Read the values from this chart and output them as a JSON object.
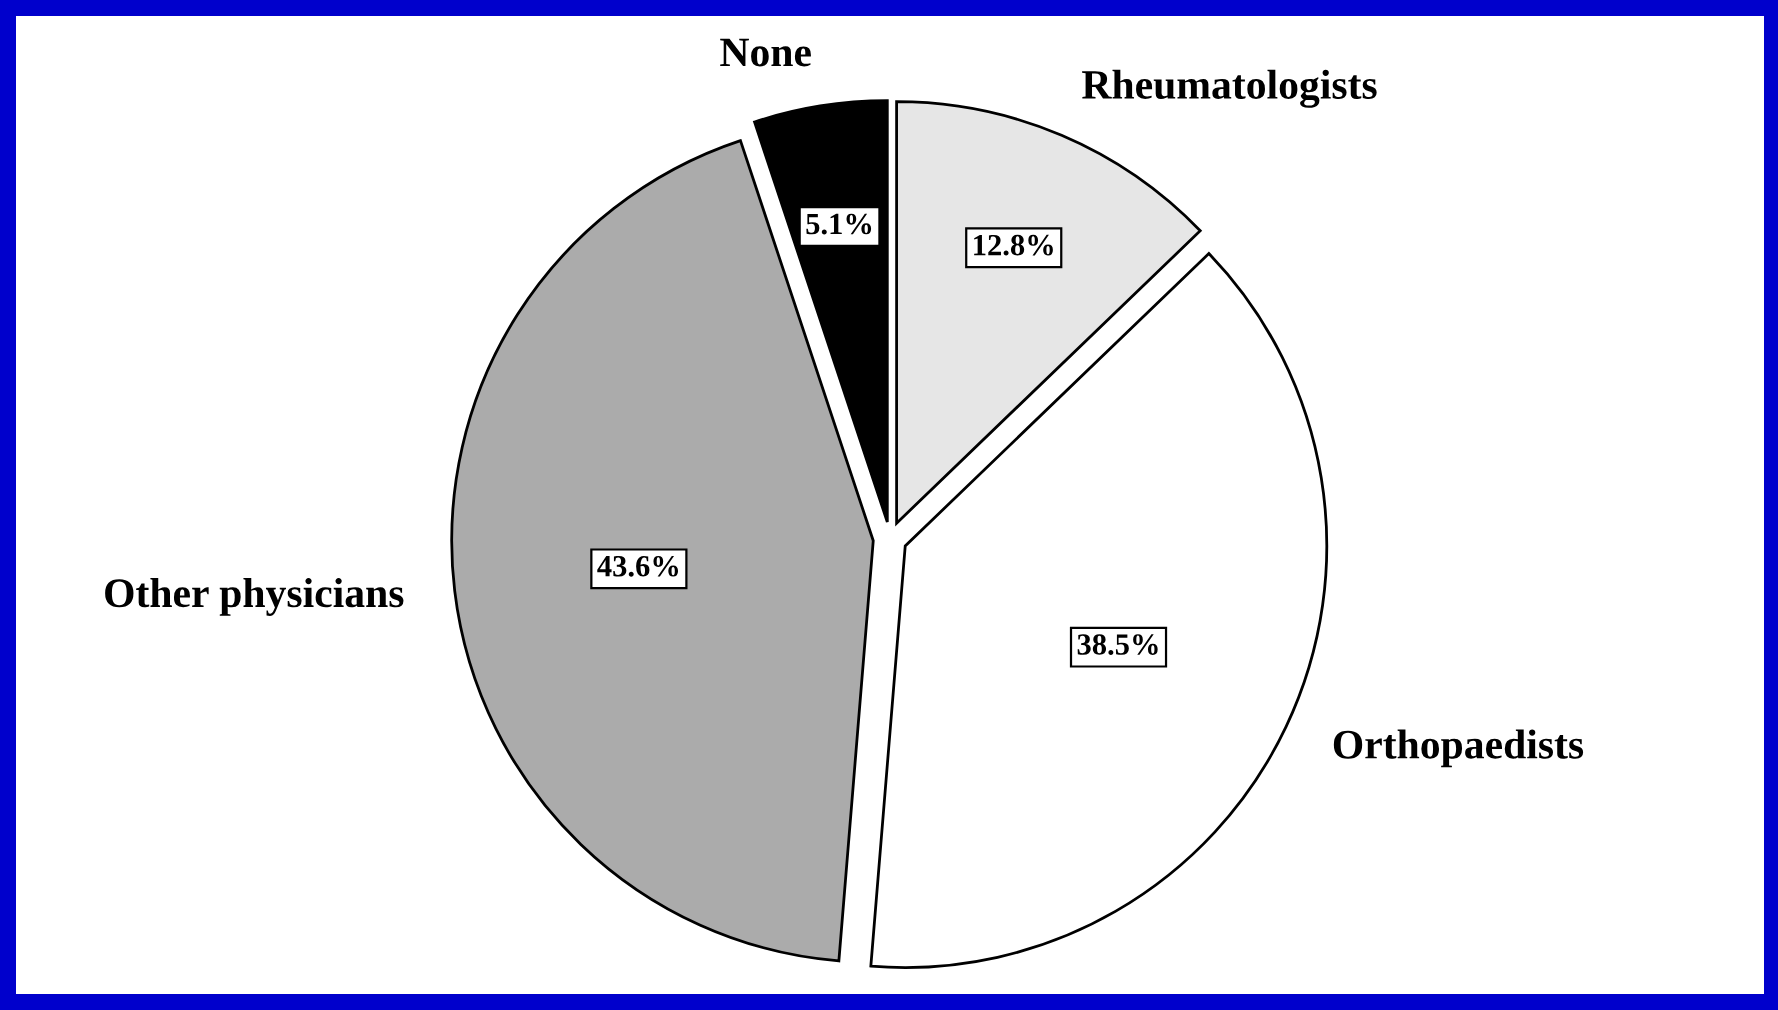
{
  "chart_data": {
    "type": "pie",
    "categories": [
      "Rheumatologists",
      "Orthopaedists",
      "Other physicians",
      "None"
    ],
    "values": [
      12.8,
      38.5,
      43.6,
      5.1
    ],
    "colors": [
      "#e6e6e6",
      "#ffffff",
      "#ababab",
      "#000000"
    ],
    "value_labels": [
      "12.8%",
      "38.5%",
      "43.6%",
      "5.1%"
    ],
    "legend": false
  }
}
